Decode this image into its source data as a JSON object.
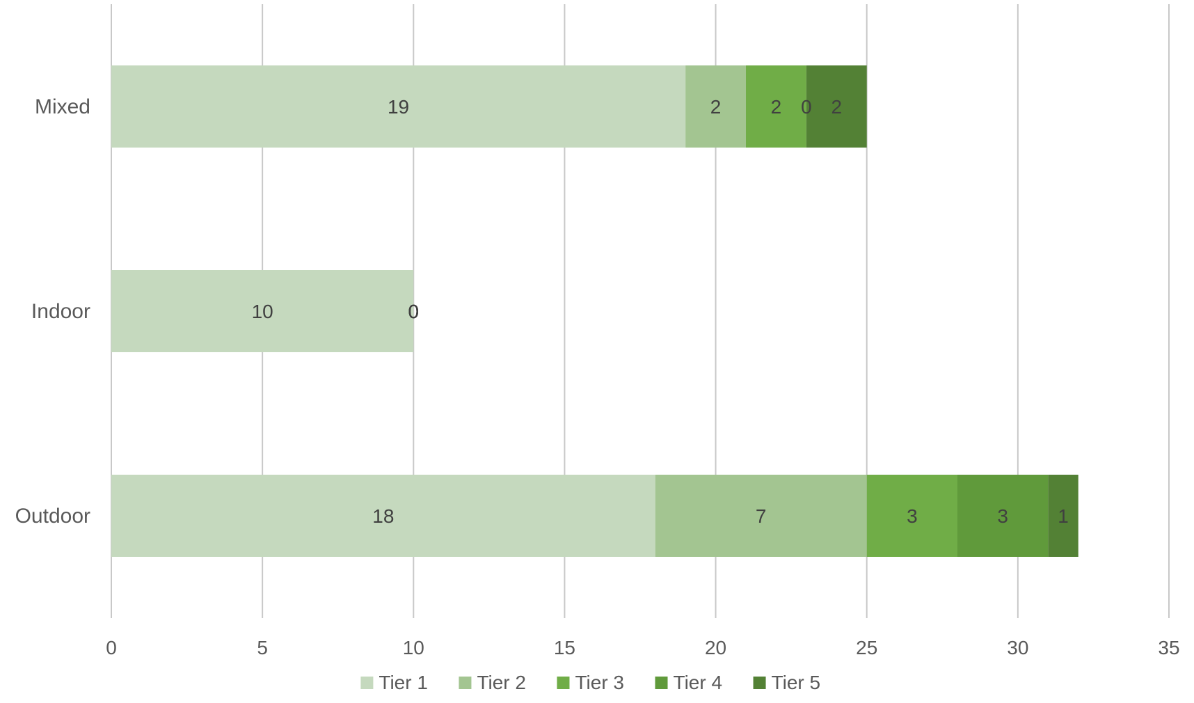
{
  "chart_data": {
    "type": "bar",
    "orientation": "horizontal",
    "stacked": true,
    "title": "",
    "xlabel": "",
    "ylabel": "",
    "categories": [
      "Mixed",
      "Indoor",
      "Outdoor"
    ],
    "xlim": [
      0,
      35
    ],
    "x_ticks": [
      0,
      5,
      10,
      15,
      20,
      25,
      30,
      35
    ],
    "grid": "vertical",
    "legend_position": "bottom",
    "series": [
      {
        "name": "Tier 1",
        "values": [
          19,
          10,
          18
        ],
        "color": "#c5d9be"
      },
      {
        "name": "Tier 2",
        "values": [
          2,
          0,
          7
        ],
        "color": "#a3c591"
      },
      {
        "name": "Tier 3",
        "values": [
          2,
          0,
          3
        ],
        "color": "#70ad47"
      },
      {
        "name": "Tier 4",
        "values": [
          0,
          0,
          3
        ],
        "color": "#609a3b"
      },
      {
        "name": "Tier 5",
        "values": [
          2,
          0,
          1
        ],
        "color": "#538135"
      }
    ],
    "data_label_color": "#404040",
    "axis_text_color": "#595959",
    "gridline_color": "#c8c8c8"
  }
}
